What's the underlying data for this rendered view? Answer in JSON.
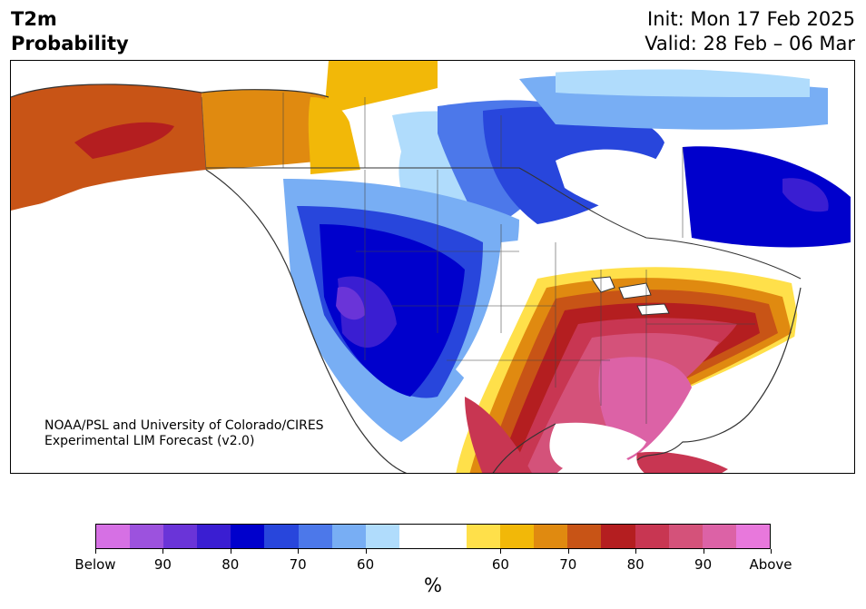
{
  "header": {
    "title_line1": "T2m",
    "title_line2": "Probability",
    "init": "Init: Mon 17 Feb 2025",
    "valid": "Valid: 28 Feb – 06 Mar"
  },
  "credit": {
    "line1": "NOAA/PSL and University of Colorado/CIRES",
    "line2": "Experimental LIM Forecast (v2.0)"
  },
  "colors": {
    "below_90_plus": "#d670e4",
    "below_85": "#9c52de",
    "below_80": "#6a34d8",
    "below_75": "#3a1ed2",
    "below_70": "#0000cc",
    "below_65": "#2846dc",
    "below_60": "#4c78ea",
    "below_55": "#78aef4",
    "below_50": "#b0dcfc",
    "neutral": "#ffffff",
    "above_50": "#ffe04a",
    "above_55": "#f2b808",
    "above_60": "#e08a10",
    "above_65": "#c85416",
    "above_70": "#b41e20",
    "above_75": "#c83652",
    "above_80": "#d4527a",
    "above_85": "#dc62a6",
    "above_90_plus": "#e878dc"
  },
  "colorbar": {
    "segments": [
      "#d670e4",
      "#9c52de",
      "#6a34d8",
      "#3a1ed2",
      "#0000cc",
      "#2846dc",
      "#4c78ea",
      "#78aef4",
      "#b0dcfc",
      "#ffffff",
      "#ffffff",
      "#ffe04a",
      "#f2b808",
      "#e08a10",
      "#c85416",
      "#b41e20",
      "#c83652",
      "#d4527a",
      "#dc62a6",
      "#e878dc"
    ],
    "tick_labels": [
      "Below",
      "90",
      "80",
      "70",
      "60",
      "60",
      "70",
      "80",
      "90",
      "Above"
    ],
    "unit": "%"
  }
}
